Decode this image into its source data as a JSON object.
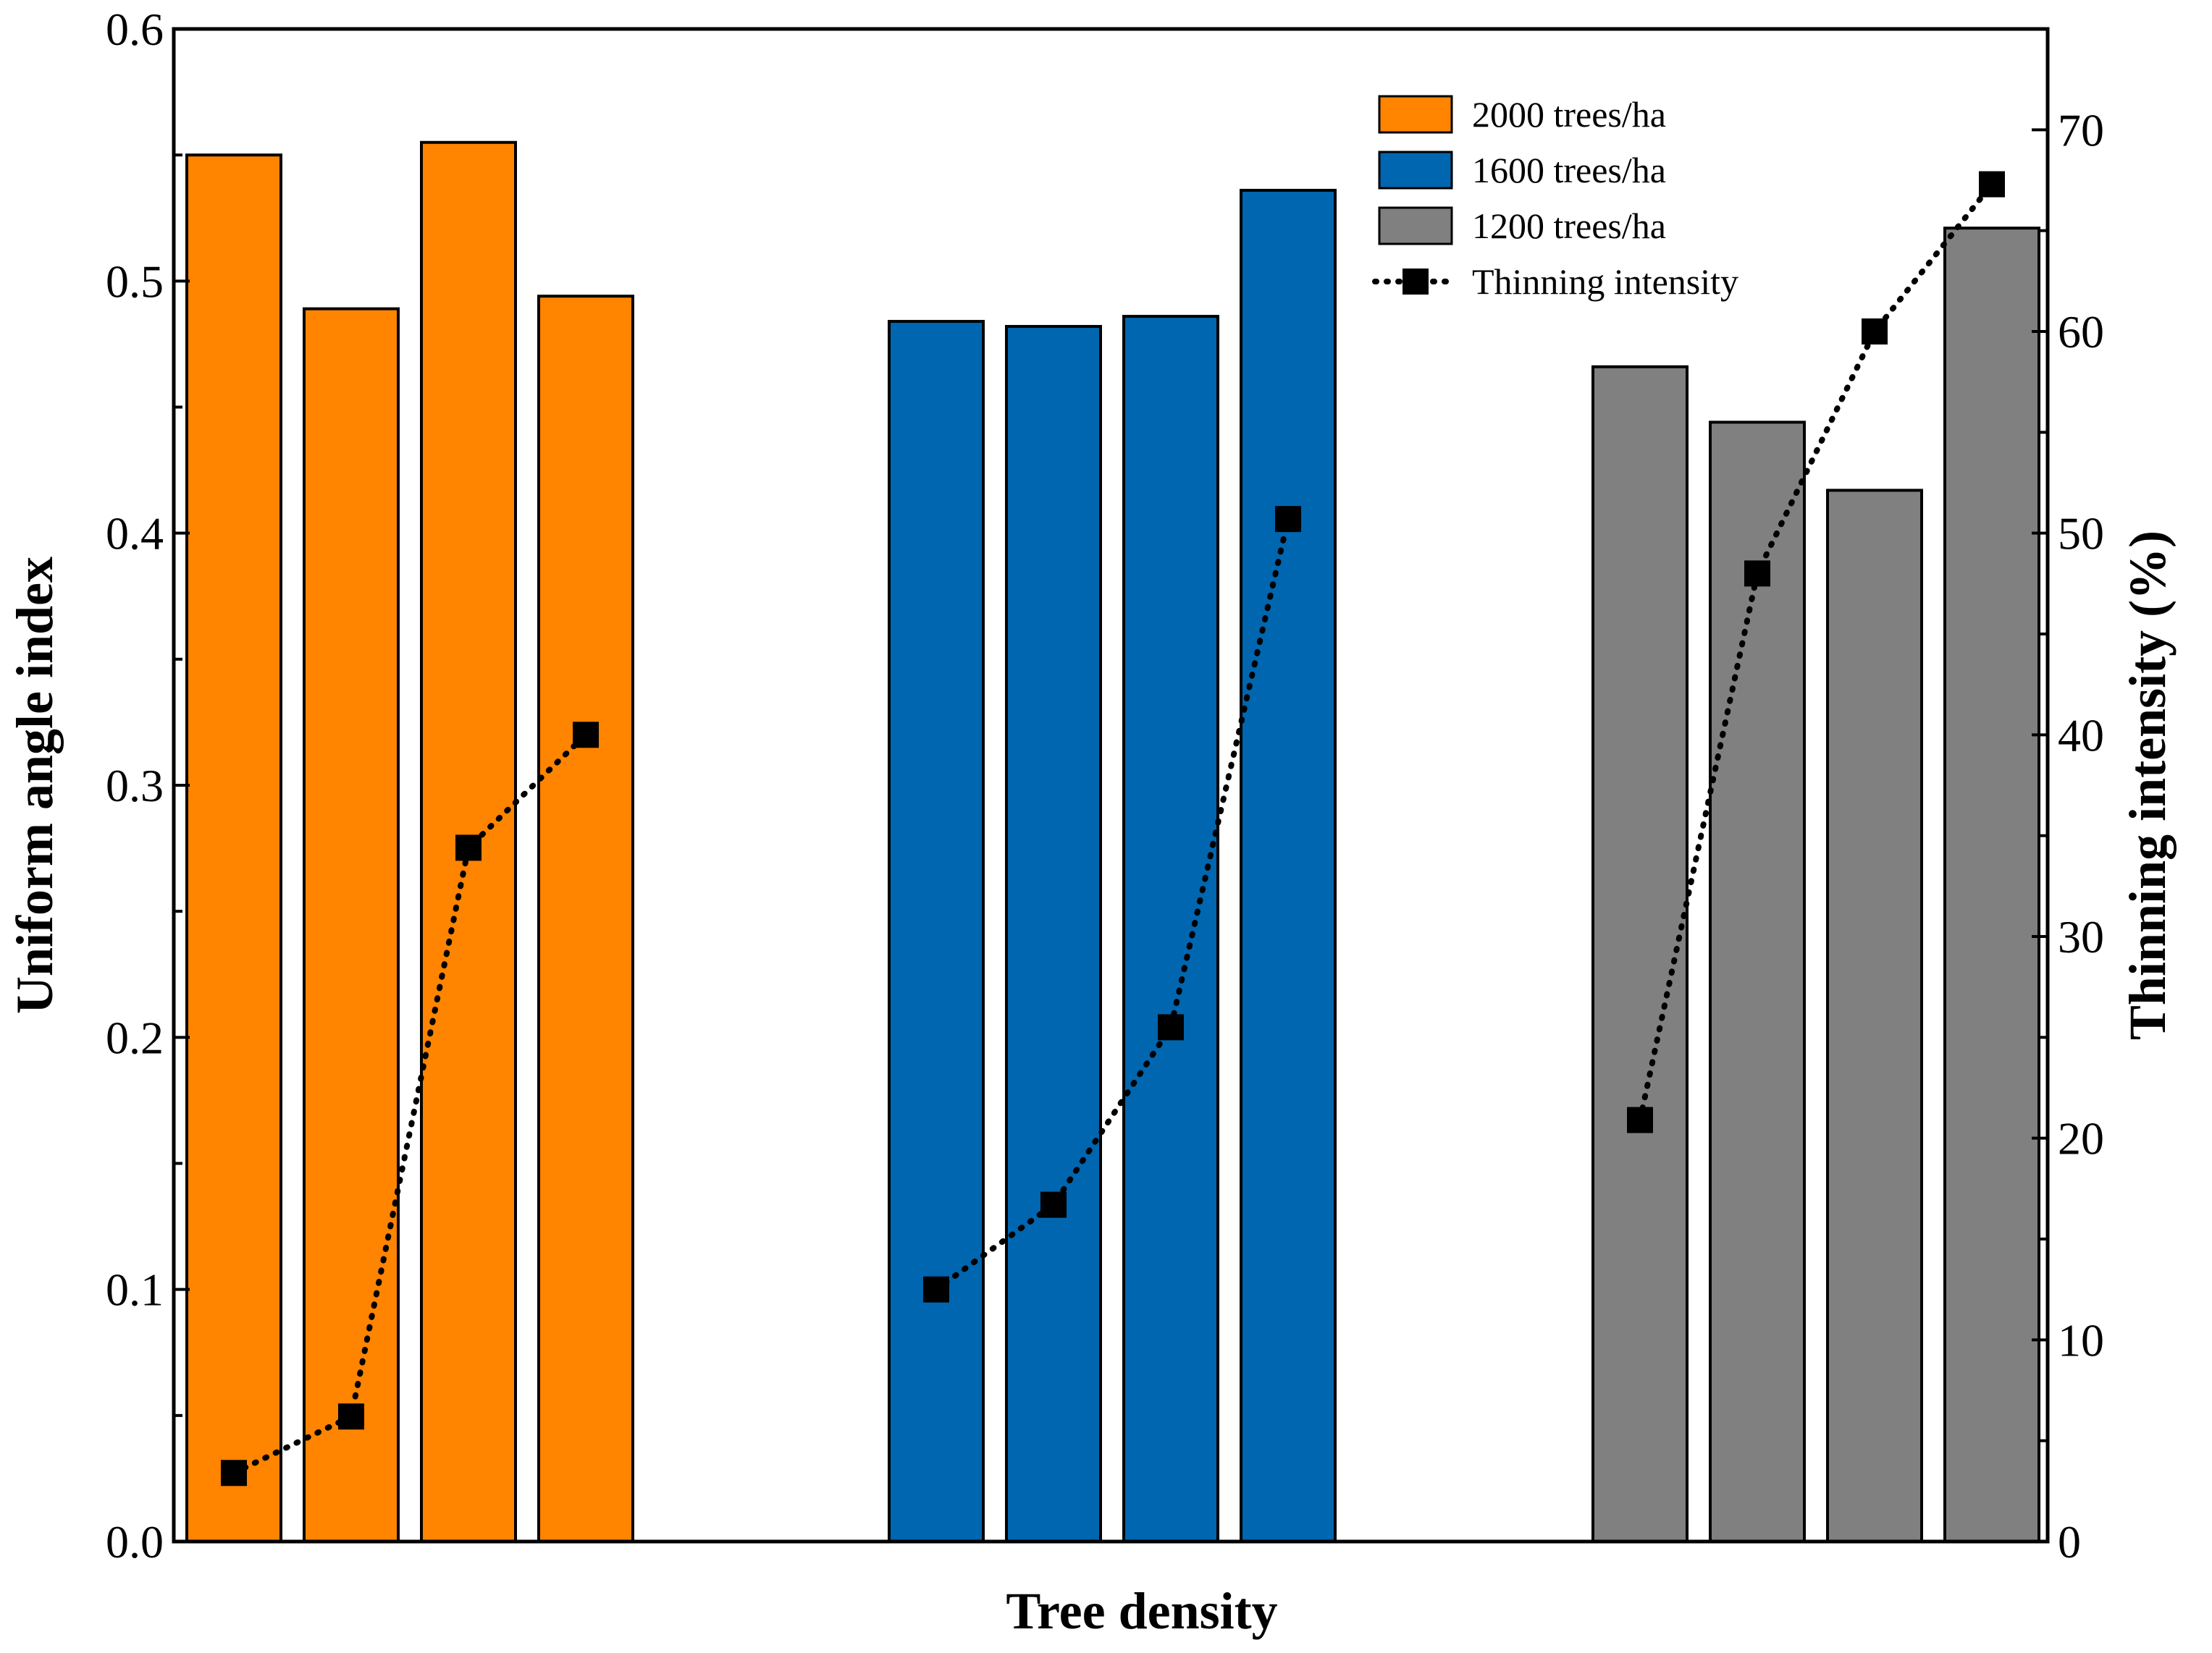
{
  "chart_data": {
    "type": "bar",
    "xlabel": "Tree density",
    "ylabel_left": "Uniform angle index",
    "ylabel_right": "Thinning intensity (%)",
    "ylim_left": [
      0,
      0.6
    ],
    "ylim_right": [
      0,
      75
    ],
    "yticks_left": [
      "0.0",
      "0.1",
      "0.2",
      "0.3",
      "0.4",
      "0.5",
      "0.6"
    ],
    "yticks_right": [
      "0",
      "10",
      "20",
      "30",
      "40",
      "50",
      "60",
      "70"
    ],
    "groups": [
      {
        "name": "2000 trees/ha",
        "color": "#FF8400",
        "uniform_angle_index": [
          0.55,
          0.489,
          0.555,
          0.494
        ],
        "thinning_intensity": [
          3.4,
          6.2,
          34.4,
          40.0
        ]
      },
      {
        "name": "1600 trees/ha",
        "color": "#0066B0",
        "uniform_angle_index": [
          0.484,
          0.482,
          0.486,
          0.536
        ],
        "thinning_intensity": [
          12.5,
          16.7,
          25.5,
          50.7
        ]
      },
      {
        "name": "1200 trees/ha",
        "color": "#808080",
        "uniform_angle_index": [
          0.466,
          0.444,
          0.417,
          0.521
        ],
        "thinning_intensity": [
          20.9,
          48.0,
          60.0,
          67.3
        ]
      }
    ],
    "line_series_name": "Thinning intensity",
    "line_color": "#000000"
  }
}
